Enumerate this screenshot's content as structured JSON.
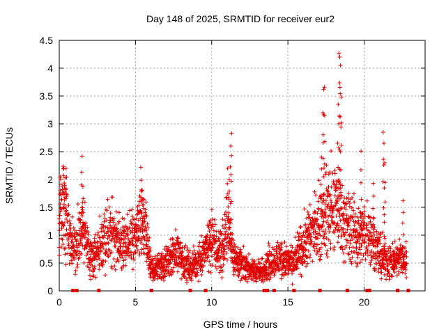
{
  "chart_data": {
    "type": "scatter",
    "title": "Day 148 of 2025, SRMTID for receiver eur2",
    "xlabel": "GPS time / hours",
    "ylabel": "SRMTID / TECUs",
    "xlim": [
      0,
      24
    ],
    "ylim": [
      0,
      4.5
    ],
    "xticks": [
      0,
      5,
      10,
      15,
      20
    ],
    "xtick_labels": [
      "0",
      "5",
      "10",
      "15",
      "20"
    ],
    "yticks": [
      0,
      0.5,
      1,
      1.5,
      2,
      2.5,
      3,
      3.5,
      4,
      4.5
    ],
    "ytick_labels": [
      "0",
      "0.5",
      "1",
      "1.5",
      "2",
      "2.5",
      "3",
      "3.5",
      "4",
      "4.5"
    ],
    "grid": true,
    "marker": "plus",
    "color": "#e00000",
    "series": [
      {
        "name": "SRMTID",
        "envelope": {
          "x": [
            0.0,
            0.2,
            0.4,
            0.6,
            0.8,
            1.0,
            1.2,
            1.5,
            1.7,
            2.0,
            2.3,
            2.6,
            2.9,
            3.2,
            3.5,
            3.8,
            4.0,
            4.3,
            4.6,
            5.0,
            5.3,
            5.6,
            5.9,
            6.0,
            6.3,
            6.6,
            7.0,
            7.4,
            7.8,
            8.2,
            8.6,
            9.0,
            9.4,
            9.7,
            10.0,
            10.4,
            10.8,
            11.0,
            11.2,
            11.5,
            11.8,
            12.1,
            12.5,
            12.9,
            13.3,
            13.7,
            14.1,
            14.5,
            14.9,
            15.3,
            15.6,
            16.0,
            16.4,
            16.8,
            17.1,
            17.4,
            17.7,
            18.0,
            18.3,
            18.6,
            18.9,
            19.2,
            19.5,
            19.8,
            20.1,
            20.4,
            20.8,
            21.1,
            21.4,
            21.7,
            22.0,
            22.3,
            22.6,
            22.8
          ],
          "y": [
            1.3,
            1.5,
            1.4,
            1.0,
            0.8,
            0.8,
            0.9,
            1.1,
            0.9,
            0.7,
            0.6,
            0.75,
            0.9,
            1.0,
            1.1,
            0.9,
            0.8,
            0.8,
            0.9,
            1.0,
            1.2,
            1.1,
            0.6,
            0.4,
            0.4,
            0.45,
            0.5,
            0.6,
            0.7,
            0.5,
            0.45,
            0.5,
            0.65,
            0.8,
            0.9,
            0.7,
            0.8,
            1.1,
            1.0,
            0.6,
            0.5,
            0.45,
            0.4,
            0.35,
            0.35,
            0.5,
            0.55,
            0.6,
            0.55,
            0.5,
            0.6,
            0.8,
            1.0,
            1.1,
            1.2,
            1.3,
            1.4,
            1.5,
            1.5,
            1.3,
            1.2,
            1.1,
            1.0,
            1.0,
            1.1,
            1.0,
            0.75,
            0.6,
            0.55,
            0.5,
            0.5,
            0.6,
            0.6,
            0.55
          ]
        },
        "spikes": [
          {
            "x": 0.1,
            "y": 2.0
          },
          {
            "x": 0.3,
            "y": 2.2
          },
          {
            "x": 0.45,
            "y": 2.2
          },
          {
            "x": 1.5,
            "y": 2.42
          },
          {
            "x": 1.55,
            "y": 1.87
          },
          {
            "x": 5.35,
            "y": 2.22
          },
          {
            "x": 5.5,
            "y": 1.65
          },
          {
            "x": 11.05,
            "y": 2.2
          },
          {
            "x": 11.15,
            "y": 2.0
          },
          {
            "x": 11.25,
            "y": 2.6
          },
          {
            "x": 11.3,
            "y": 2.83
          },
          {
            "x": 17.2,
            "y": 2.4
          },
          {
            "x": 17.3,
            "y": 3.2
          },
          {
            "x": 17.35,
            "y": 3.62
          },
          {
            "x": 17.4,
            "y": 3.66
          },
          {
            "x": 18.3,
            "y": 3.35
          },
          {
            "x": 18.35,
            "y": 4.27
          },
          {
            "x": 18.4,
            "y": 4.2
          },
          {
            "x": 18.45,
            "y": 4.05
          },
          {
            "x": 18.5,
            "y": 3.48
          },
          {
            "x": 19.8,
            "y": 2.51
          },
          {
            "x": 20.6,
            "y": 1.93
          },
          {
            "x": 21.25,
            "y": 2.85
          },
          {
            "x": 21.3,
            "y": 2.65
          },
          {
            "x": 21.35,
            "y": 2.3
          },
          {
            "x": 22.55,
            "y": 1.62
          }
        ],
        "baseline_markers_x": [
          0.9,
          1.15,
          2.6,
          6.05,
          8.6,
          9.6,
          13.45,
          13.65,
          14.1,
          15.4,
          17.1,
          18.9,
          20.2,
          20.35,
          22.2,
          22.9
        ]
      }
    ]
  }
}
